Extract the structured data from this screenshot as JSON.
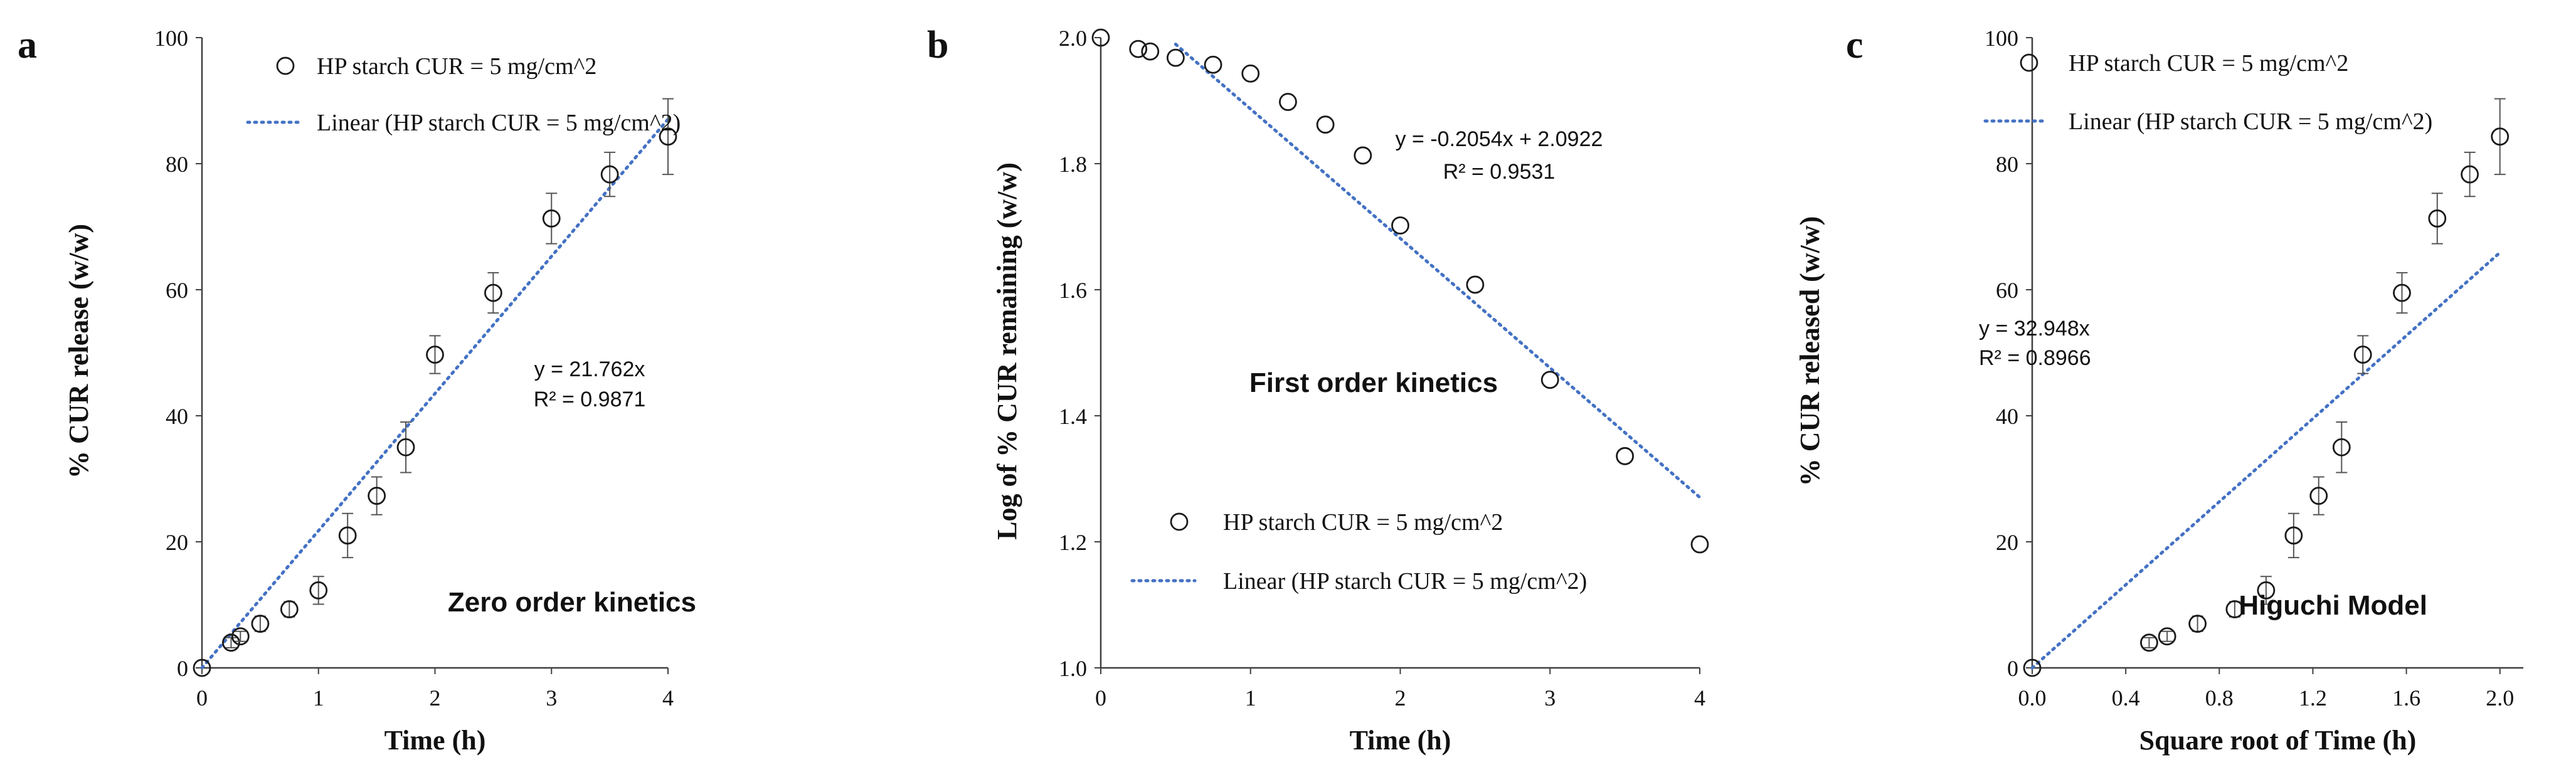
{
  "chart_data": [
    {
      "panel_label": "a",
      "type": "scatter",
      "xlabel": "Time (h)",
      "ylabel": "% CUR release (w/w)",
      "xlim": [
        0,
        4
      ],
      "ylim": [
        0,
        100
      ],
      "x_ticks": [
        "0",
        "1",
        "2",
        "3",
        "4"
      ],
      "y_ticks": [
        "0",
        "20",
        "40",
        "60",
        "80",
        "100"
      ],
      "legend_position": "top-left",
      "series": [
        {
          "name": "HP starch CUR = 5 mg/cm^2",
          "x": [
            0,
            0.25,
            0.33,
            0.5,
            0.75,
            1.0,
            1.25,
            1.5,
            1.75,
            2.0,
            2.5,
            3.0,
            3.5,
            4.0
          ],
          "y": [
            0,
            4,
            5,
            7,
            9.3,
            12.3,
            21,
            27.3,
            35,
            49.7,
            59.5,
            71.3,
            78.3,
            84.3
          ],
          "error": [
            0,
            0.8,
            0.8,
            1.2,
            1.2,
            2.2,
            3.5,
            3.0,
            4.0,
            3.0,
            3.2,
            4.0,
            3.5,
            6.0
          ]
        },
        {
          "name": "Linear (HP starch CUR = 5 mg/cm^2)",
          "fit": "linear",
          "slope": 21.762,
          "intercept": 0,
          "x_range": [
            0,
            4
          ]
        }
      ],
      "annotations": {
        "equation": "y = 21.762x",
        "r2": "R² = 0.9871",
        "model": "Zero order kinetics"
      }
    },
    {
      "panel_label": "b",
      "type": "scatter",
      "xlabel": "Time (h)",
      "ylabel": "Log of % CUR remaining (w/w)",
      "xlim": [
        0,
        4
      ],
      "ylim": [
        1.0,
        2.0
      ],
      "x_ticks": [
        "0",
        "1",
        "2",
        "3",
        "4"
      ],
      "y_ticks": [
        "1.0",
        "1.2",
        "1.4",
        "1.6",
        "1.8",
        "2.0"
      ],
      "legend_position": "bottom-left",
      "series": [
        {
          "name": "HP starch CUR = 5 mg/cm^2",
          "x": [
            0,
            0.25,
            0.33,
            0.5,
            0.75,
            1.0,
            1.25,
            1.5,
            1.75,
            2.0,
            2.5,
            3.0,
            3.5,
            4.0
          ],
          "y": [
            2.0,
            1.982,
            1.978,
            1.968,
            1.957,
            1.943,
            1.898,
            1.862,
            1.813,
            1.702,
            1.608,
            1.457,
            1.336,
            1.196
          ]
        },
        {
          "name": "Linear (HP starch CUR = 5 mg/cm^2)",
          "fit": "linear",
          "slope": -0.2054,
          "intercept": 2.0922,
          "x_range": [
            0.5,
            4
          ]
        }
      ],
      "annotations": {
        "equation": "y = -0.2054x + 2.0922",
        "r2": "R² = 0.9531",
        "model": "First order kinetics"
      }
    },
    {
      "panel_label": "c",
      "type": "scatter",
      "xlabel": "Square root of Time (h)",
      "ylabel": "% CUR released (w/w)",
      "xlim": [
        0,
        2.1
      ],
      "ylim": [
        0,
        100
      ],
      "x_tick_values": [
        0,
        0.4,
        0.8,
        1.2,
        1.6,
        2.0
      ],
      "x_ticks": [
        "0.0",
        "0.4",
        "0.8",
        "1.2",
        "1.6",
        "2.0"
      ],
      "y_ticks": [
        "0",
        "20",
        "40",
        "60",
        "80",
        "100"
      ],
      "legend_position": "top-left",
      "series": [
        {
          "name": "HP starch CUR = 5 mg/cm^2",
          "x": [
            0,
            0.5,
            0.577,
            0.707,
            0.866,
            1.0,
            1.118,
            1.225,
            1.323,
            1.414,
            1.581,
            1.732,
            1.871,
            2.0
          ],
          "y": [
            0,
            4,
            5,
            7,
            9.3,
            12.3,
            21,
            27.3,
            35,
            49.7,
            59.5,
            71.3,
            78.3,
            84.3
          ],
          "error": [
            0,
            0.8,
            0.8,
            1.2,
            1.2,
            2.2,
            3.5,
            3.0,
            4.0,
            3.0,
            3.2,
            4.0,
            3.5,
            6.0
          ]
        },
        {
          "name": "Linear (HP starch CUR = 5 mg/cm^2)",
          "fit": "linear",
          "slope": 32.948,
          "intercept": 0,
          "x_range": [
            0,
            2.0
          ]
        }
      ],
      "annotations": {
        "equation": "y = 32.948x",
        "r2": "R² = 0.8966",
        "model": "Higuchi Model"
      }
    }
  ],
  "colors": {
    "fit_line": "#4472c4",
    "marker": "#1a1a1a",
    "axis": "#404040",
    "text": "#111111"
  }
}
